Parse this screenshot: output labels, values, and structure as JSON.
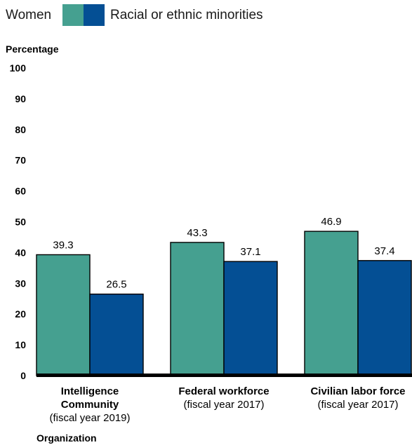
{
  "chart_data": {
    "type": "bar",
    "categories": [
      {
        "name": "Intelligence Community",
        "sub": "(fiscal year 2019)"
      },
      {
        "name": "Federal workforce",
        "sub": "(fiscal year 2017)"
      },
      {
        "name": "Civilian labor force",
        "sub": "(fiscal year 2017)"
      }
    ],
    "series": [
      {
        "name": "Women",
        "color": "#45a090",
        "values": [
          39.3,
          43.3,
          46.9
        ],
        "labels": [
          "39.3",
          "43.3",
          "46.9"
        ]
      },
      {
        "name": "Racial or ethnic minorities",
        "color": "#044f94",
        "values": [
          26.5,
          37.1,
          37.4
        ],
        "labels": [
          "26.5",
          "37.1",
          "37.4"
        ]
      }
    ],
    "ylabel": "Percentage",
    "xlabel": "Organization",
    "ylim": [
      0,
      100
    ],
    "yticks": [
      0,
      10,
      20,
      30,
      40,
      50,
      60,
      70,
      80,
      90,
      100
    ],
    "legend_position": "top-left",
    "grid": false
  }
}
